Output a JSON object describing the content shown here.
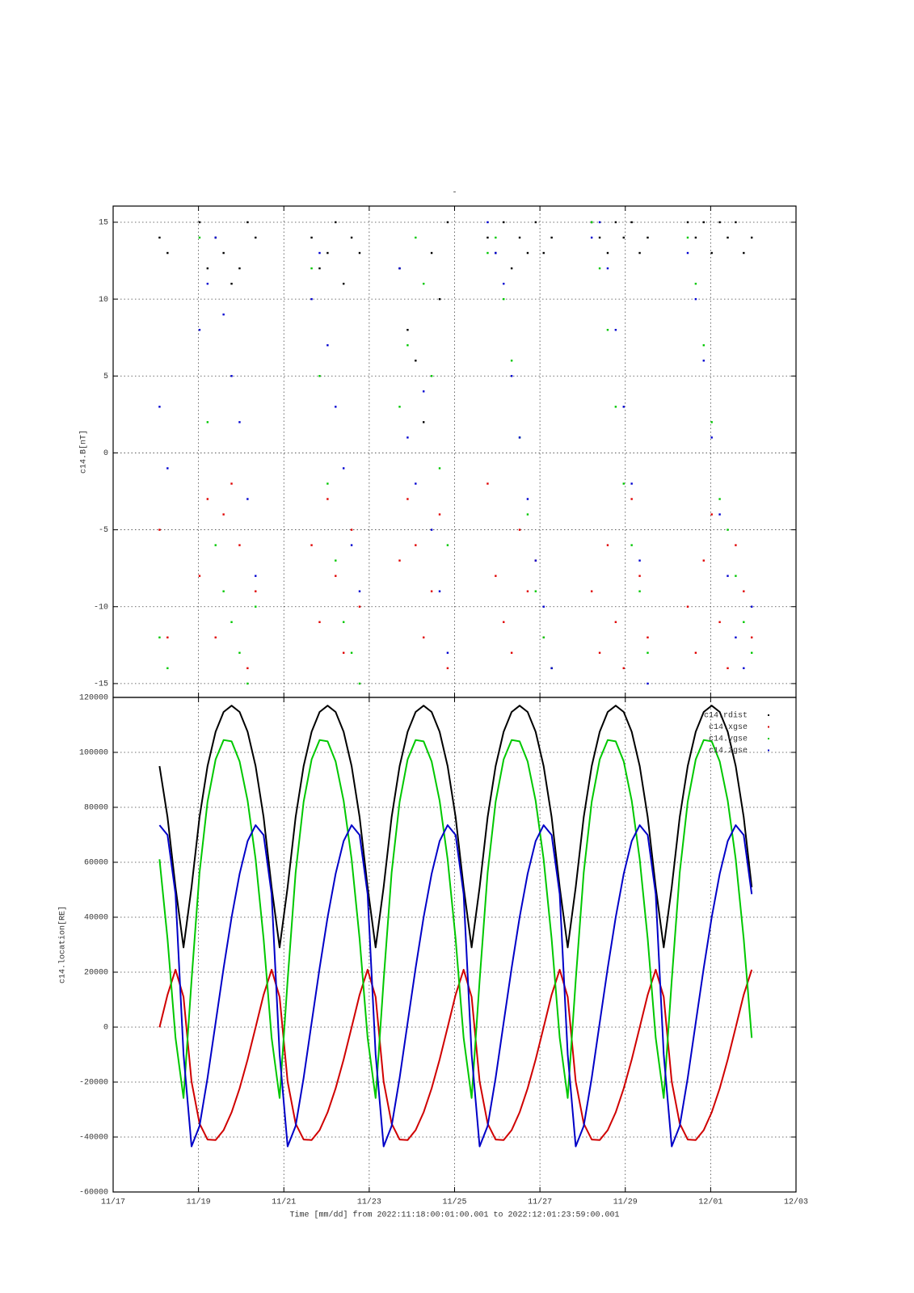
{
  "chart_data": [
    {
      "type": "scatter",
      "title": "-",
      "ylabel": "c14.B[nT]",
      "xlim": [
        "2022-11-17T00:00",
        "2022-12-03T00:00"
      ],
      "xticks": [
        "2022-11-17T00:00",
        "2022-11-19T00:00",
        "2022-11-21T00:00",
        "2022-11-23T00:00",
        "2022-11-25T00:00",
        "2022-11-27T00:00",
        "2022-11-29T00:00",
        "2022-12-01T00:00",
        "2022-12-03T00:00"
      ],
      "ylim": [
        -15.9,
        16.05
      ],
      "yticks": [
        -15,
        -10,
        -5,
        0,
        5,
        10,
        15
      ],
      "grid": true,
      "x": [
        "2022-11-18T02:06",
        "2022-11-18T06:36",
        "2022-11-18T11:06",
        "2022-11-18T15:36",
        "2022-11-18T20:06",
        "2022-11-19T00:36",
        "2022-11-19T05:06",
        "2022-11-19T09:36",
        "2022-11-19T14:06",
        "2022-11-19T18:36",
        "2022-11-19T23:06",
        "2022-11-20T03:36",
        "2022-11-20T08:06",
        "2022-11-20T12:36",
        "2022-11-20T17:06",
        "2022-11-20T21:36",
        "2022-11-21T02:06",
        "2022-11-21T06:36",
        "2022-11-21T11:06",
        "2022-11-21T15:36",
        "2022-11-21T20:06",
        "2022-11-22T00:36",
        "2022-11-22T05:06",
        "2022-11-22T09:36",
        "2022-11-22T14:06",
        "2022-11-22T18:36",
        "2022-11-22T23:06",
        "2022-11-23T03:36",
        "2022-11-23T08:06",
        "2022-11-23T12:36",
        "2022-11-23T17:06",
        "2022-11-23T21:36",
        "2022-11-24T02:06",
        "2022-11-24T06:36",
        "2022-11-24T11:06",
        "2022-11-24T15:36",
        "2022-11-24T20:06",
        "2022-11-25T00:36",
        "2022-11-25T05:06",
        "2022-11-25T09:36",
        "2022-11-25T14:06",
        "2022-11-25T18:36",
        "2022-11-25T23:06",
        "2022-11-26T03:36",
        "2022-11-26T08:06",
        "2022-11-26T12:36",
        "2022-11-26T17:06",
        "2022-11-26T21:36",
        "2022-11-27T02:06",
        "2022-11-27T06:36",
        "2022-11-27T11:06",
        "2022-11-27T15:36",
        "2022-11-27T20:06",
        "2022-11-28T00:36",
        "2022-11-28T05:06",
        "2022-11-28T09:36",
        "2022-11-28T14:06",
        "2022-11-28T18:36",
        "2022-11-28T23:06",
        "2022-11-29T03:36",
        "2022-11-29T08:06",
        "2022-11-29T12:36",
        "2022-11-29T17:06",
        "2022-11-29T21:36",
        "2022-11-30T02:06",
        "2022-11-30T06:36",
        "2022-11-30T11:06",
        "2022-11-30T15:36",
        "2022-11-30T20:06",
        "2022-12-01T00:36",
        "2022-12-01T05:06",
        "2022-12-01T09:36",
        "2022-12-01T14:06",
        "2022-12-01T18:36",
        "2022-12-01T23:06"
      ],
      "series": [
        {
          "color": "#000000",
          "values": [
            14,
            13,
            null,
            null,
            null,
            15,
            12,
            14,
            13,
            11,
            12,
            15,
            14,
            null,
            null,
            null,
            null,
            null,
            null,
            14,
            12,
            13,
            15,
            11,
            14,
            13,
            null,
            null,
            null,
            null,
            12,
            8,
            6,
            2,
            13,
            10,
            15,
            null,
            null,
            null,
            null,
            14,
            13,
            15,
            12,
            14,
            13,
            15,
            13,
            14,
            null,
            null,
            null,
            null,
            15,
            14,
            13,
            15,
            14,
            15,
            13,
            14,
            null,
            null,
            null,
            null,
            15,
            14,
            15,
            13,
            15,
            14,
            15,
            13,
            14
          ]
        },
        {
          "color": "#e00000",
          "values": [
            -5,
            -12,
            null,
            null,
            null,
            -8,
            -3,
            -12,
            -4,
            -2,
            -6,
            -14,
            -9,
            null,
            null,
            null,
            null,
            null,
            null,
            -6,
            -11,
            -3,
            -8,
            -13,
            -5,
            -10,
            null,
            null,
            null,
            null,
            -7,
            -3,
            -6,
            -12,
            -9,
            -4,
            -14,
            null,
            null,
            null,
            null,
            -2,
            -8,
            -11,
            -13,
            -5,
            -9,
            -7,
            -12,
            -14,
            null,
            null,
            null,
            null,
            -9,
            -13,
            -6,
            -11,
            -14,
            -3,
            -8,
            -12,
            null,
            null,
            null,
            null,
            -10,
            -13,
            -7,
            -4,
            -11,
            -14,
            -6,
            -9,
            -12
          ]
        },
        {
          "color": "#00c800",
          "values": [
            -12,
            -14,
            null,
            null,
            null,
            14,
            2,
            -6,
            -9,
            -11,
            -13,
            -15,
            -10,
            null,
            null,
            null,
            null,
            null,
            null,
            12,
            5,
            -2,
            -7,
            -11,
            -13,
            -15,
            null,
            null,
            null,
            null,
            3,
            7,
            14,
            11,
            5,
            -1,
            -6,
            null,
            null,
            null,
            null,
            13,
            14,
            10,
            6,
            1,
            -4,
            -9,
            -12,
            -14,
            null,
            null,
            null,
            null,
            15,
            12,
            8,
            3,
            -2,
            -6,
            -9,
            -13,
            null,
            null,
            null,
            null,
            14,
            11,
            7,
            2,
            -3,
            -5,
            -8,
            -11,
            -13
          ]
        },
        {
          "color": "#0000d0",
          "values": [
            3,
            -1,
            null,
            null,
            null,
            8,
            11,
            14,
            9,
            5,
            2,
            -3,
            -8,
            null,
            null,
            null,
            null,
            null,
            null,
            10,
            13,
            7,
            3,
            -1,
            -6,
            -9,
            null,
            null,
            null,
            null,
            12,
            1,
            -2,
            4,
            -5,
            -9,
            -13,
            null,
            null,
            null,
            null,
            15,
            13,
            11,
            5,
            1,
            -3,
            -7,
            -10,
            -14,
            null,
            null,
            null,
            null,
            14,
            15,
            12,
            8,
            3,
            -2,
            -7,
            -15,
            null,
            null,
            null,
            null,
            13,
            10,
            6,
            1,
            -4,
            -8,
            -12,
            -14,
            -10
          ]
        }
      ]
    },
    {
      "type": "line",
      "ylabel": "c14.location[RE]",
      "xlabel": "Time [mm/dd]  from 2022:11:18:00:01:00.001  to  2022:12:01:23:59:00.001",
      "xlim": [
        "2022-11-17T00:00",
        "2022-12-03T00:00"
      ],
      "xticks": [
        {
          "value": "2022-11-17T00:00",
          "label": "11/17"
        },
        {
          "value": "2022-11-19T00:00",
          "label": "11/19"
        },
        {
          "value": "2022-11-21T00:00",
          "label": "11/21"
        },
        {
          "value": "2022-11-23T00:00",
          "label": "11/23"
        },
        {
          "value": "2022-11-25T00:00",
          "label": "11/25"
        },
        {
          "value": "2022-11-27T00:00",
          "label": "11/27"
        },
        {
          "value": "2022-11-29T00:00",
          "label": "11/29"
        },
        {
          "value": "2022-12-01T00:00",
          "label": "12/01"
        },
        {
          "value": "2022-12-03T00:00",
          "label": "12/03"
        }
      ],
      "ylim": [
        -60000,
        120000
      ],
      "yticks": [
        -60000,
        -40000,
        -20000,
        0,
        20000,
        40000,
        60000,
        80000,
        100000,
        120000
      ],
      "grid": true,
      "legend": "upper right",
      "x": [
        "2022-11-18T02:06",
        "2022-11-18T06:36",
        "2022-11-18T11:06",
        "2022-11-18T15:36",
        "2022-11-18T20:06",
        "2022-11-19T00:36",
        "2022-11-19T05:06",
        "2022-11-19T09:36",
        "2022-11-19T14:06",
        "2022-11-19T18:36",
        "2022-11-19T23:06",
        "2022-11-20T03:36",
        "2022-11-20T08:06",
        "2022-11-20T12:36",
        "2022-11-20T17:06",
        "2022-11-20T21:36",
        "2022-11-21T02:06",
        "2022-11-21T06:36",
        "2022-11-21T11:06",
        "2022-11-21T15:36",
        "2022-11-21T20:06",
        "2022-11-22T00:36",
        "2022-11-22T05:06",
        "2022-11-22T09:36",
        "2022-11-22T14:06",
        "2022-11-22T18:36",
        "2022-11-22T23:06",
        "2022-11-23T03:36",
        "2022-11-23T08:06",
        "2022-11-23T12:36",
        "2022-11-23T17:06",
        "2022-11-23T21:36",
        "2022-11-24T02:06",
        "2022-11-24T06:36",
        "2022-11-24T11:06",
        "2022-11-24T15:36",
        "2022-11-24T20:06",
        "2022-11-25T00:36",
        "2022-11-25T05:06",
        "2022-11-25T09:36",
        "2022-11-25T14:06",
        "2022-11-25T18:36",
        "2022-11-25T23:06",
        "2022-11-26T03:36",
        "2022-11-26T08:06",
        "2022-11-26T12:36",
        "2022-11-26T17:06",
        "2022-11-26T21:36",
        "2022-11-27T02:06",
        "2022-11-27T06:36",
        "2022-11-27T11:06",
        "2022-11-27T15:36",
        "2022-11-27T20:06",
        "2022-11-28T00:36",
        "2022-11-28T05:06",
        "2022-11-28T09:36",
        "2022-11-28T14:06",
        "2022-11-28T18:36",
        "2022-11-28T23:06",
        "2022-11-29T03:36",
        "2022-11-29T08:06",
        "2022-11-29T12:36",
        "2022-11-29T17:06",
        "2022-11-29T21:36",
        "2022-11-30T02:06",
        "2022-11-30T06:36",
        "2022-11-30T11:06",
        "2022-11-30T15:36",
        "2022-11-30T20:06",
        "2022-12-01T00:36",
        "2022-12-01T05:06",
        "2022-12-01T09:36",
        "2022-12-01T14:06",
        "2022-12-01T18:36",
        "2022-12-01T23:06"
      ],
      "series": [
        {
          "name": "c14.rdist",
          "color": "#000000",
          "values": [
            95000,
            76400,
            50900,
            29000,
            50900,
            76400,
            95000,
            107500,
            114700,
            117000,
            114700,
            107500,
            95000,
            76400,
            50900,
            29000,
            50900,
            76400,
            95000,
            107500,
            114700,
            117000,
            114700,
            107500,
            95000,
            76400,
            50900,
            29000,
            50900,
            76400,
            95000,
            107500,
            114700,
            117000,
            114700,
            107500,
            95000,
            76400,
            50900,
            29000,
            50900,
            76400,
            95000,
            107500,
            114700,
            117000,
            114700,
            107500,
            95000,
            76400,
            50900,
            29000,
            50900,
            76400,
            95000,
            107500,
            114700,
            117000,
            114700,
            107500,
            95000,
            76400,
            50900,
            29000,
            50900,
            76400,
            95000,
            107500,
            114700,
            117000,
            114700,
            107500,
            95000,
            76400,
            50900
          ]
        },
        {
          "name": "c14.xgse",
          "color": "#d00000",
          "values": [
            -100,
            11800,
            20900,
            11000,
            -19800,
            -35100,
            -40900,
            -41100,
            -37500,
            -31000,
            -22300,
            -11800,
            -100,
            11800,
            20900,
            11000,
            -19800,
            -35100,
            -40900,
            -41100,
            -37500,
            -31000,
            -22300,
            -11800,
            -100,
            11800,
            20900,
            11000,
            -19800,
            -35100,
            -40900,
            -41100,
            -37500,
            -31000,
            -22300,
            -11800,
            -100,
            11800,
            20900,
            11000,
            -19800,
            -35100,
            -40900,
            -41100,
            -37500,
            -31000,
            -22300,
            -11800,
            -100,
            11800,
            20900,
            11000,
            -19800,
            -35100,
            -40900,
            -41100,
            -37500,
            -31000,
            -22300,
            -11800,
            -100,
            11800,
            20900,
            11000,
            -19800,
            -35100,
            -40900,
            -41100,
            -37500,
            -31000,
            -22300,
            -11800,
            -100,
            11800,
            20900
          ]
        },
        {
          "name": "c14.ygse",
          "color": "#00c800",
          "values": [
            61100,
            32100,
            -3900,
            -25800,
            17000,
            56200,
            82000,
            97400,
            104500,
            104000,
            96700,
            82400,
            61100,
            32100,
            -3900,
            -25800,
            17000,
            56200,
            82000,
            97400,
            104500,
            104000,
            96700,
            82400,
            61100,
            32100,
            -3900,
            -25800,
            17000,
            56200,
            82000,
            97400,
            104500,
            104000,
            96700,
            82400,
            61100,
            32100,
            -3900,
            -25800,
            17000,
            56200,
            82000,
            97400,
            104500,
            104000,
            96700,
            82400,
            61100,
            32100,
            -3900,
            -25800,
            17000,
            56200,
            82000,
            97400,
            104500,
            104000,
            96700,
            82400,
            61100,
            32100,
            -3900,
            -25800,
            17000,
            56200,
            82000,
            97400,
            104500,
            104000,
            96700,
            82400,
            61100,
            32100,
            -3900
          ]
        },
        {
          "name": "c14.zgse",
          "color": "#0000c8",
          "values": [
            73500,
            69900,
            48400,
            -9900,
            -43400,
            -36000,
            -18500,
            1600,
            21500,
            40000,
            55800,
            67700,
            73500,
            69900,
            48400,
            -9900,
            -43400,
            -36000,
            -18500,
            1600,
            21500,
            40000,
            55800,
            67700,
            73500,
            69900,
            48400,
            -9900,
            -43400,
            -36000,
            -18500,
            1600,
            21500,
            40000,
            55800,
            67700,
            73500,
            69900,
            48400,
            -9900,
            -43400,
            -36000,
            -18500,
            1600,
            21500,
            40000,
            55800,
            67700,
            73500,
            69900,
            48400,
            -9900,
            -43400,
            -36000,
            -18500,
            1600,
            21500,
            40000,
            55800,
            67700,
            73500,
            69900,
            48400,
            -9900,
            -43400,
            -36000,
            -18500,
            1600,
            21500,
            40000,
            55800,
            67700,
            73500,
            69900,
            48400
          ]
        }
      ]
    }
  ]
}
